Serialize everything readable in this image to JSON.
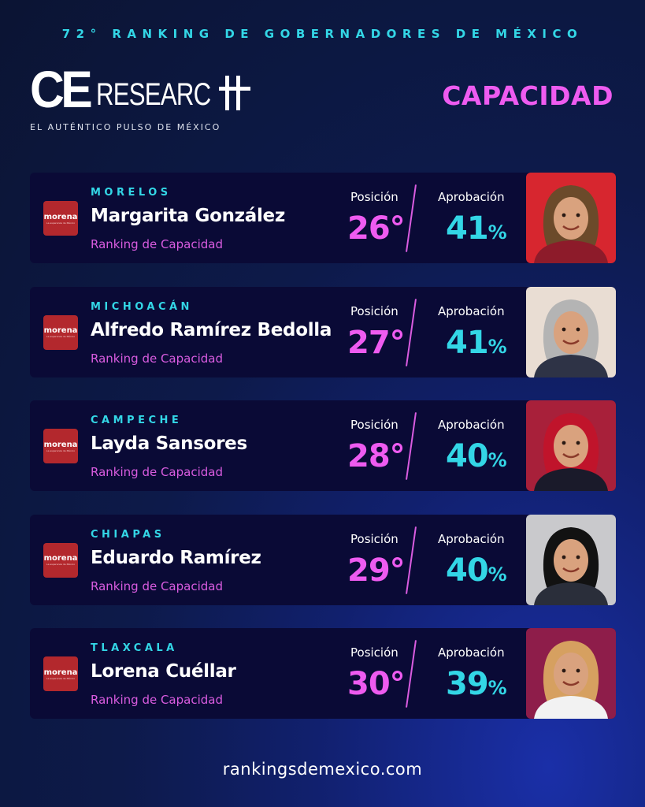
{
  "header": {
    "banner": "72° RANKING DE GOBERNADORES DE MÉXICO",
    "brand_ce": "CE",
    "brand_research": "RESEARC",
    "tagline": "EL AUTÉNTICO PULSO DE MÉXICO",
    "category": "CAPACIDAD"
  },
  "labels": {
    "position": "Posición",
    "approval": "Aprobación",
    "percent": "%"
  },
  "party": {
    "name": "morena",
    "subtitle": "La esperanza de México",
    "color": "#b3282d"
  },
  "governors": [
    {
      "state": "MORELOS",
      "name": "Margarita González",
      "ranking_label": "Ranking de Capacidad",
      "position": "26°",
      "approval": "41",
      "photo_bg": "#d7262f",
      "photo_icon": "woman-portrait-icon"
    },
    {
      "state": "MICHOACÁN",
      "name": "Alfredo Ramírez Bedolla",
      "ranking_label": "Ranking de Capacidad",
      "position": "27°",
      "approval": "41",
      "photo_bg": "#e9ddd3",
      "photo_icon": "man-portrait-icon"
    },
    {
      "state": "CAMPECHE",
      "name": "Layda Sansores",
      "ranking_label": "Ranking de Capacidad",
      "position": "28°",
      "approval": "40",
      "photo_bg": "#a8203a",
      "photo_icon": "woman-portrait-icon"
    },
    {
      "state": "CHIAPAS",
      "name": "Eduardo Ramírez",
      "ranking_label": "Ranking de Capacidad",
      "position": "29°",
      "approval": "40",
      "photo_bg": "#c9c9cc",
      "photo_icon": "man-portrait-icon"
    },
    {
      "state": "TLAXCALA",
      "name": "Lorena Cuéllar",
      "ranking_label": "Ranking de Capacidad",
      "position": "30°",
      "approval": "39",
      "photo_bg": "#8e1d4a",
      "photo_icon": "woman-portrait-icon"
    }
  ],
  "footer": {
    "url": "rankingsdemexico.com"
  },
  "colors": {
    "accent_cyan": "#33d6e6",
    "accent_magenta": "#ee5bf0",
    "card_bg": "#0a0a36"
  }
}
